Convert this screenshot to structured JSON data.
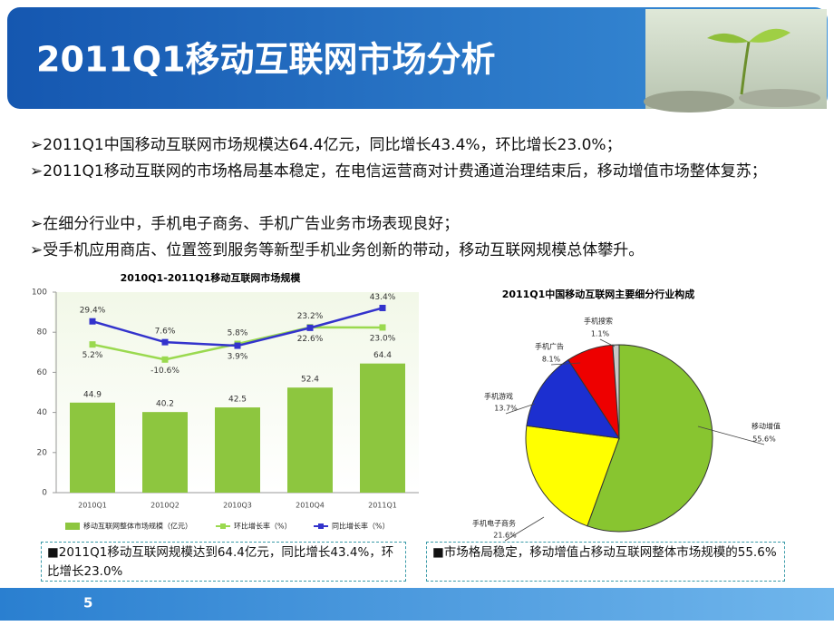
{
  "header": {
    "title": "2011Q1移动互联网市场分析"
  },
  "bullets": [
    "➢2011Q1中国移动互联网市场规模达64.4亿元，同比增长43.4%，环比增长23.0%；",
    "➢2011Q1移动互联网的市场格局基本稳定，在电信运营商对计费通道治理结束后，移动增值市场整体复苏；",
    "➢在细分行业中，手机电子商务、手机广告业务市场表现良好；",
    "➢受手机应用商店、位置签到服务等新型手机业务创新的带动，移动互联网规模总体攀升。"
  ],
  "chart_data": [
    {
      "type": "bar",
      "title": "2010Q1-2011Q1移动互联网市场规模",
      "categories": [
        "2010Q1",
        "2010Q2",
        "2010Q3",
        "2010Q4",
        "2011Q1"
      ],
      "ylim": [
        0,
        100
      ],
      "yticks": [
        0,
        20,
        40,
        60,
        80,
        100
      ],
      "y2lim": [
        -150,
        60
      ],
      "series": [
        {
          "name": "移动互联网整体市场规模（亿元）",
          "type": "bar",
          "color": "#8dc63f",
          "values": [
            44.9,
            40.2,
            42.5,
            52.4,
            64.4
          ]
        },
        {
          "name": "环比增长率（%）",
          "type": "line",
          "axis": "y2",
          "color": "#9ad94f",
          "values": [
            5.2,
            -10.6,
            5.8,
            23.2,
            23.0
          ],
          "value_labels": [
            "5.2%",
            "-10.6%",
            "5.8%",
            "23.2%",
            "23.0%"
          ]
        },
        {
          "name": "同比增长率（%）",
          "type": "line",
          "axis": "y2",
          "color": "#3333cc",
          "values": [
            29.4,
            7.6,
            3.9,
            22.6,
            43.4
          ],
          "value_labels": [
            "29.4%",
            "7.6%",
            "3.9%",
            "22.6%",
            "43.4%"
          ]
        }
      ]
    },
    {
      "type": "pie",
      "title": "2011Q1中国移动互联网主要细分行业构成",
      "categories": [
        "移动增值",
        "手机电子商务",
        "手机游戏",
        "手机广告",
        "手机搜索"
      ],
      "values": [
        55.6,
        21.6,
        13.7,
        8.1,
        1.1
      ],
      "value_labels": [
        "55.6%",
        "21.6%",
        "13.7%",
        "8.1%",
        "1.1%"
      ],
      "colors": [
        "#88c530",
        "#ffff00",
        "#1c2fd0",
        "#ee0000",
        "#c8c8c8"
      ]
    }
  ],
  "captions": [
    "■2011Q1移动互联网规模达到64.4亿元，同比增长43.4%，环比增长23.0%",
    "■市场格局稳定，移动增值占移动互联网整体市场规模的55.6%"
  ],
  "page_number": "5"
}
